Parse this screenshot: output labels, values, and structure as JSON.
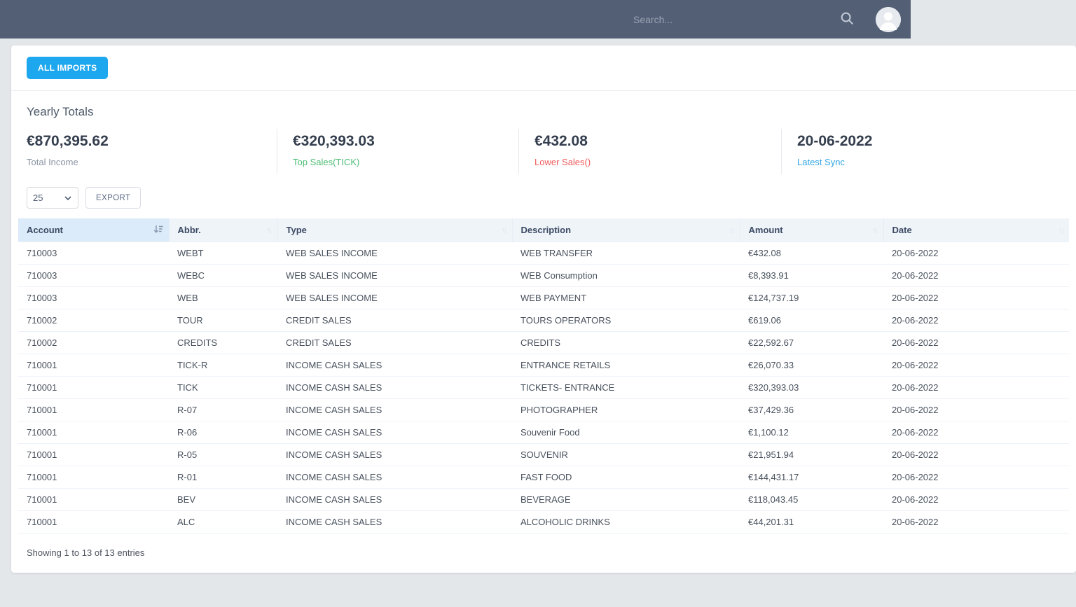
{
  "navbar": {
    "search_placeholder": "Search..."
  },
  "toolbar": {
    "all_imports_label": "ALL IMPORTS"
  },
  "yearly": {
    "title": "Yearly Totals",
    "stats": [
      {
        "value": "€870,395.62",
        "label": "Total Income",
        "label_color": "#8a93a2"
      },
      {
        "value": "€320,393.03",
        "label": "Top Sales(TICK)",
        "label_color": "#4dbd74"
      },
      {
        "value": "€432.08",
        "label": "Lower Sales()",
        "label_color": "#f05b5c"
      },
      {
        "value": "20-06-2022",
        "label": "Latest Sync",
        "label_color": "#33a5e4"
      }
    ]
  },
  "table_controls": {
    "page_size": "25",
    "export_label": "EXPORT"
  },
  "table": {
    "columns": [
      "Account",
      "Abbr.",
      "Type",
      "Description",
      "Amount",
      "Date"
    ],
    "sorted_column": "Account",
    "rows": [
      [
        "710003",
        "WEBT",
        "WEB SALES INCOME",
        "WEB TRANSFER",
        "€432.08",
        "20-06-2022"
      ],
      [
        "710003",
        "WEBC",
        "WEB SALES INCOME",
        "WEB Consumption",
        "€8,393.91",
        "20-06-2022"
      ],
      [
        "710003",
        "WEB",
        "WEB SALES INCOME",
        "WEB PAYMENT",
        "€124,737.19",
        "20-06-2022"
      ],
      [
        "710002",
        "TOUR",
        "CREDIT SALES",
        "TOURS OPERATORS",
        "€619.06",
        "20-06-2022"
      ],
      [
        "710002",
        "CREDITS",
        "CREDIT SALES",
        "CREDITS",
        "€22,592.67",
        "20-06-2022"
      ],
      [
        "710001",
        "TICK-R",
        "INCOME CASH SALES",
        "ENTRANCE RETAILS",
        "€26,070.33",
        "20-06-2022"
      ],
      [
        "710001",
        "TICK",
        "INCOME CASH SALES",
        "TICKETS- ENTRANCE",
        "€320,393.03",
        "20-06-2022"
      ],
      [
        "710001",
        "R-07",
        "INCOME CASH SALES",
        "PHOTOGRAPHER",
        "€37,429.36",
        "20-06-2022"
      ],
      [
        "710001",
        "R-06",
        "INCOME CASH SALES",
        "Souvenir Food",
        "€1,100.12",
        "20-06-2022"
      ],
      [
        "710001",
        "R-05",
        "INCOME CASH SALES",
        "SOUVENIR",
        "€21,951.94",
        "20-06-2022"
      ],
      [
        "710001",
        "R-01",
        "INCOME CASH SALES",
        "FAST FOOD",
        "€144,431.17",
        "20-06-2022"
      ],
      [
        "710001",
        "BEV",
        "INCOME CASH SALES",
        "BEVERAGE",
        "€118,043.45",
        "20-06-2022"
      ],
      [
        "710001",
        "ALC",
        "INCOME CASH SALES",
        "ALCOHOLIC DRINKS",
        "€44,201.31",
        "20-06-2022"
      ]
    ],
    "footer": "Showing 1 to 13 of 13 entries"
  },
  "colors": {
    "navbar_bg": "#525f75",
    "accent_button": "#1da7ee",
    "page_bg": "#e4e7ea",
    "sorted_header_bg": "#dcebf9"
  }
}
